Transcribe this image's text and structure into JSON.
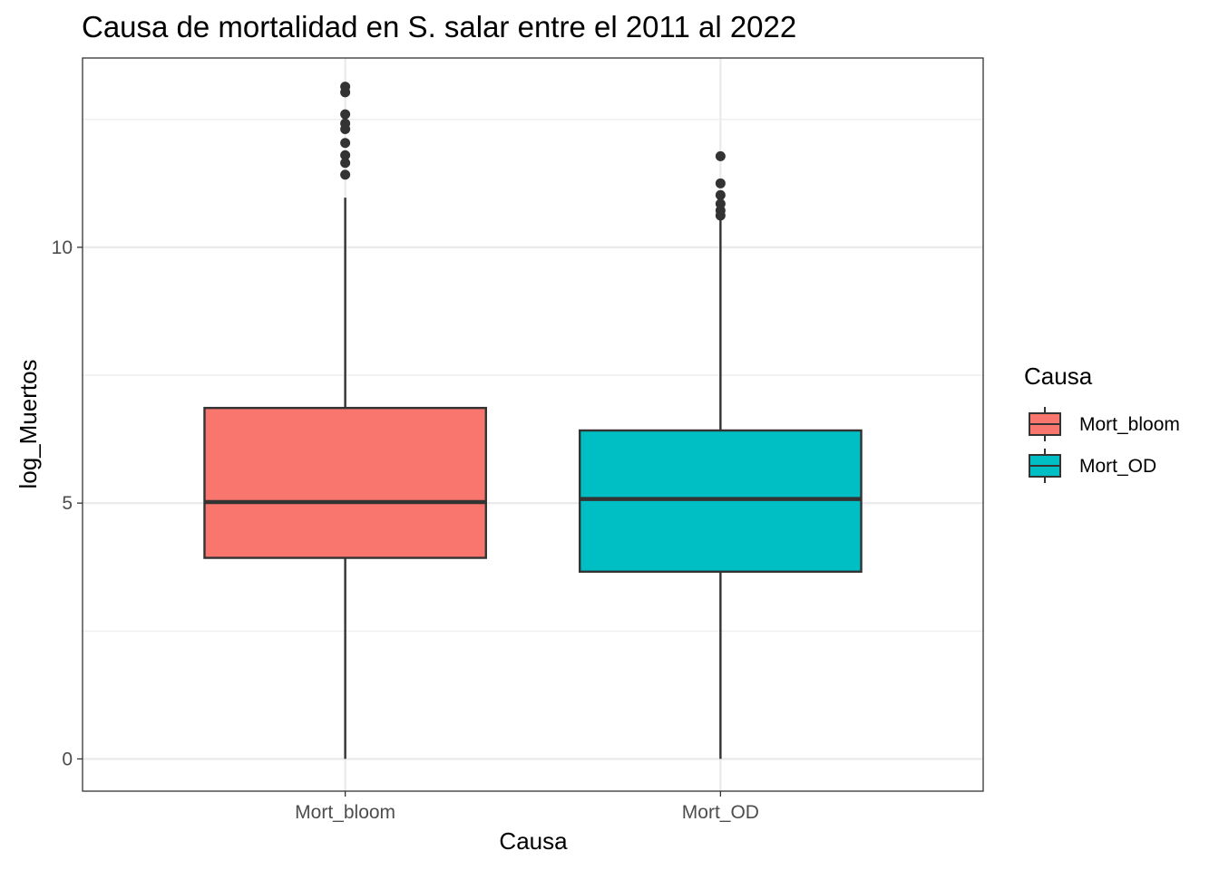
{
  "chart_data": {
    "type": "boxplot",
    "title": "Causa de mortalidad en S. salar entre el 2011 al 2022",
    "xlabel": "Causa",
    "ylabel": "log_Muertos",
    "ylim": [
      -0.63,
      13.7
    ],
    "y_ticks": [
      0,
      5,
      10
    ],
    "y_tick_labels": [
      "0",
      "5",
      "10"
    ],
    "y_minor_ticks": [
      2.5,
      7.5,
      12.5
    ],
    "grid": true,
    "legend": {
      "title": "Causa",
      "placement": "right"
    },
    "categories": [
      "Mort_bloom",
      "Mort_OD"
    ],
    "series": [
      {
        "name": "Mort_bloom",
        "color": "#F8766D",
        "min": 0,
        "q1": 3.93,
        "median": 5.02,
        "q3": 6.86,
        "max": 10.97,
        "outliers": [
          11.42,
          11.65,
          11.8,
          12.04,
          12.31,
          12.42,
          12.6,
          13.03,
          13.14
        ]
      },
      {
        "name": "Mort_OD",
        "color": "#00BFC4",
        "min": 0,
        "q1": 3.66,
        "median": 5.08,
        "q3": 6.42,
        "max": 10.6,
        "outliers": [
          10.62,
          10.72,
          10.85,
          11.02,
          11.25,
          11.78
        ]
      }
    ]
  }
}
